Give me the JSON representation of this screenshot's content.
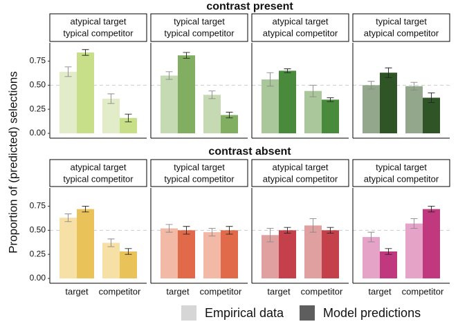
{
  "ylabel": "Proportion of (predicted) selections",
  "row_titles": [
    "contrast present",
    "contrast absent"
  ],
  "legend_colors": [
    "#d6d6d6",
    "#5e5e5e"
  ],
  "chart_data": [
    {
      "type": "bar",
      "title": [
        "atypical target",
        "typical competitor"
      ],
      "categories": [
        null,
        null
      ],
      "ylim": [
        -0.05,
        0.94
      ],
      "yticks": [
        {
          "value": 0,
          "label": "0.00"
        },
        {
          "value": 0.25,
          "label": "0.25"
        },
        {
          "value": 0.5,
          "label": "0.50"
        },
        {
          "value": 0.75,
          "label": "0.75"
        }
      ],
      "hline": 0.5,
      "series": [
        {
          "name": "Empirical data",
          "color": "#e3ecc8",
          "values": [
            0.64,
            0.36
          ],
          "errors": [
            0.05,
            0.05
          ]
        },
        {
          "name": "Model predictions",
          "color": "#c8df8a",
          "values": [
            0.84,
            0.16
          ],
          "errors": [
            0.03,
            0.04
          ]
        }
      ]
    },
    {
      "type": "bar",
      "title": [
        "typical target",
        "typical competitor"
      ],
      "categories": [
        null,
        null
      ],
      "ylim": [
        -0.05,
        0.94
      ],
      "hline": 0.5,
      "series": [
        {
          "name": "Empirical data",
          "color": "#c5d9b3",
          "values": [
            0.6,
            0.4
          ],
          "errors": [
            0.04,
            0.04
          ]
        },
        {
          "name": "Model predictions",
          "color": "#82ae62",
          "values": [
            0.81,
            0.19
          ],
          "errors": [
            0.03,
            0.03
          ]
        }
      ]
    },
    {
      "type": "bar",
      "title": [
        "atypical target",
        "atypical competitor"
      ],
      "categories": [
        null,
        null
      ],
      "ylim": [
        -0.05,
        0.94
      ],
      "hline": 0.5,
      "series": [
        {
          "name": "Empirical data",
          "color": "#a9c79b",
          "values": [
            0.56,
            0.44
          ],
          "errors": [
            0.07,
            0.06
          ]
        },
        {
          "name": "Model predictions",
          "color": "#4a8a3c",
          "values": [
            0.65,
            0.35
          ],
          "errors": [
            0.02,
            0.02
          ]
        }
      ]
    },
    {
      "type": "bar",
      "title": [
        "typical target",
        "atypical competitor"
      ],
      "categories": [
        null,
        null
      ],
      "ylim": [
        -0.05,
        0.94
      ],
      "hline": 0.5,
      "series": [
        {
          "name": "Empirical data",
          "color": "#92a78b",
          "values": [
            0.5,
            0.49
          ],
          "errors": [
            0.04,
            0.04
          ]
        },
        {
          "name": "Model predictions",
          "color": "#2f5426",
          "values": [
            0.63,
            0.37
          ],
          "errors": [
            0.05,
            0.05
          ]
        }
      ]
    },
    {
      "type": "bar",
      "title": [
        "atypical target",
        "typical competitor"
      ],
      "categories": [
        "target",
        "competitor"
      ],
      "ylim": [
        -0.05,
        0.94
      ],
      "yticks": [
        {
          "value": 0,
          "label": "0.00"
        },
        {
          "value": 0.25,
          "label": "0.25"
        },
        {
          "value": 0.5,
          "label": "0.50"
        },
        {
          "value": 0.75,
          "label": "0.75"
        }
      ],
      "hline": 0.5,
      "series": [
        {
          "name": "Empirical data",
          "color": "#f6e0a6",
          "values": [
            0.63,
            0.37
          ],
          "errors": [
            0.04,
            0.04
          ]
        },
        {
          "name": "Model predictions",
          "color": "#e9c35a",
          "values": [
            0.72,
            0.28
          ],
          "errors": [
            0.03,
            0.03
          ]
        }
      ]
    },
    {
      "type": "bar",
      "title": [
        "typical target",
        "typical competitor"
      ],
      "categories": [
        "target",
        "competitor"
      ],
      "ylim": [
        -0.05,
        0.94
      ],
      "hline": 0.5,
      "series": [
        {
          "name": "Empirical data",
          "color": "#f2b9a6",
          "values": [
            0.52,
            0.48
          ],
          "errors": [
            0.04,
            0.04
          ]
        },
        {
          "name": "Model predictions",
          "color": "#e06a4a",
          "values": [
            0.5,
            0.5
          ],
          "errors": [
            0.04,
            0.04
          ]
        }
      ]
    },
    {
      "type": "bar",
      "title": [
        "atypical target",
        "atypical competitor"
      ],
      "categories": [
        "target",
        "competitor"
      ],
      "ylim": [
        -0.05,
        0.94
      ],
      "hline": 0.5,
      "series": [
        {
          "name": "Empirical data",
          "color": "#e0a0a0",
          "values": [
            0.45,
            0.55
          ],
          "errors": [
            0.07,
            0.07
          ]
        },
        {
          "name": "Model predictions",
          "color": "#c4404a",
          "values": [
            0.5,
            0.5
          ],
          "errors": [
            0.03,
            0.03
          ]
        }
      ]
    },
    {
      "type": "bar",
      "title": [
        "typical target",
        "atypical competitor"
      ],
      "categories": [
        "target",
        "competitor"
      ],
      "ylim": [
        -0.05,
        0.94
      ],
      "hline": 0.5,
      "series": [
        {
          "name": "Empirical data",
          "color": "#e5a3c8",
          "values": [
            0.43,
            0.57
          ],
          "errors": [
            0.05,
            0.05
          ]
        },
        {
          "name": "Model predictions",
          "color": "#c0397f",
          "values": [
            0.28,
            0.72
          ],
          "errors": [
            0.03,
            0.03
          ]
        }
      ]
    }
  ]
}
